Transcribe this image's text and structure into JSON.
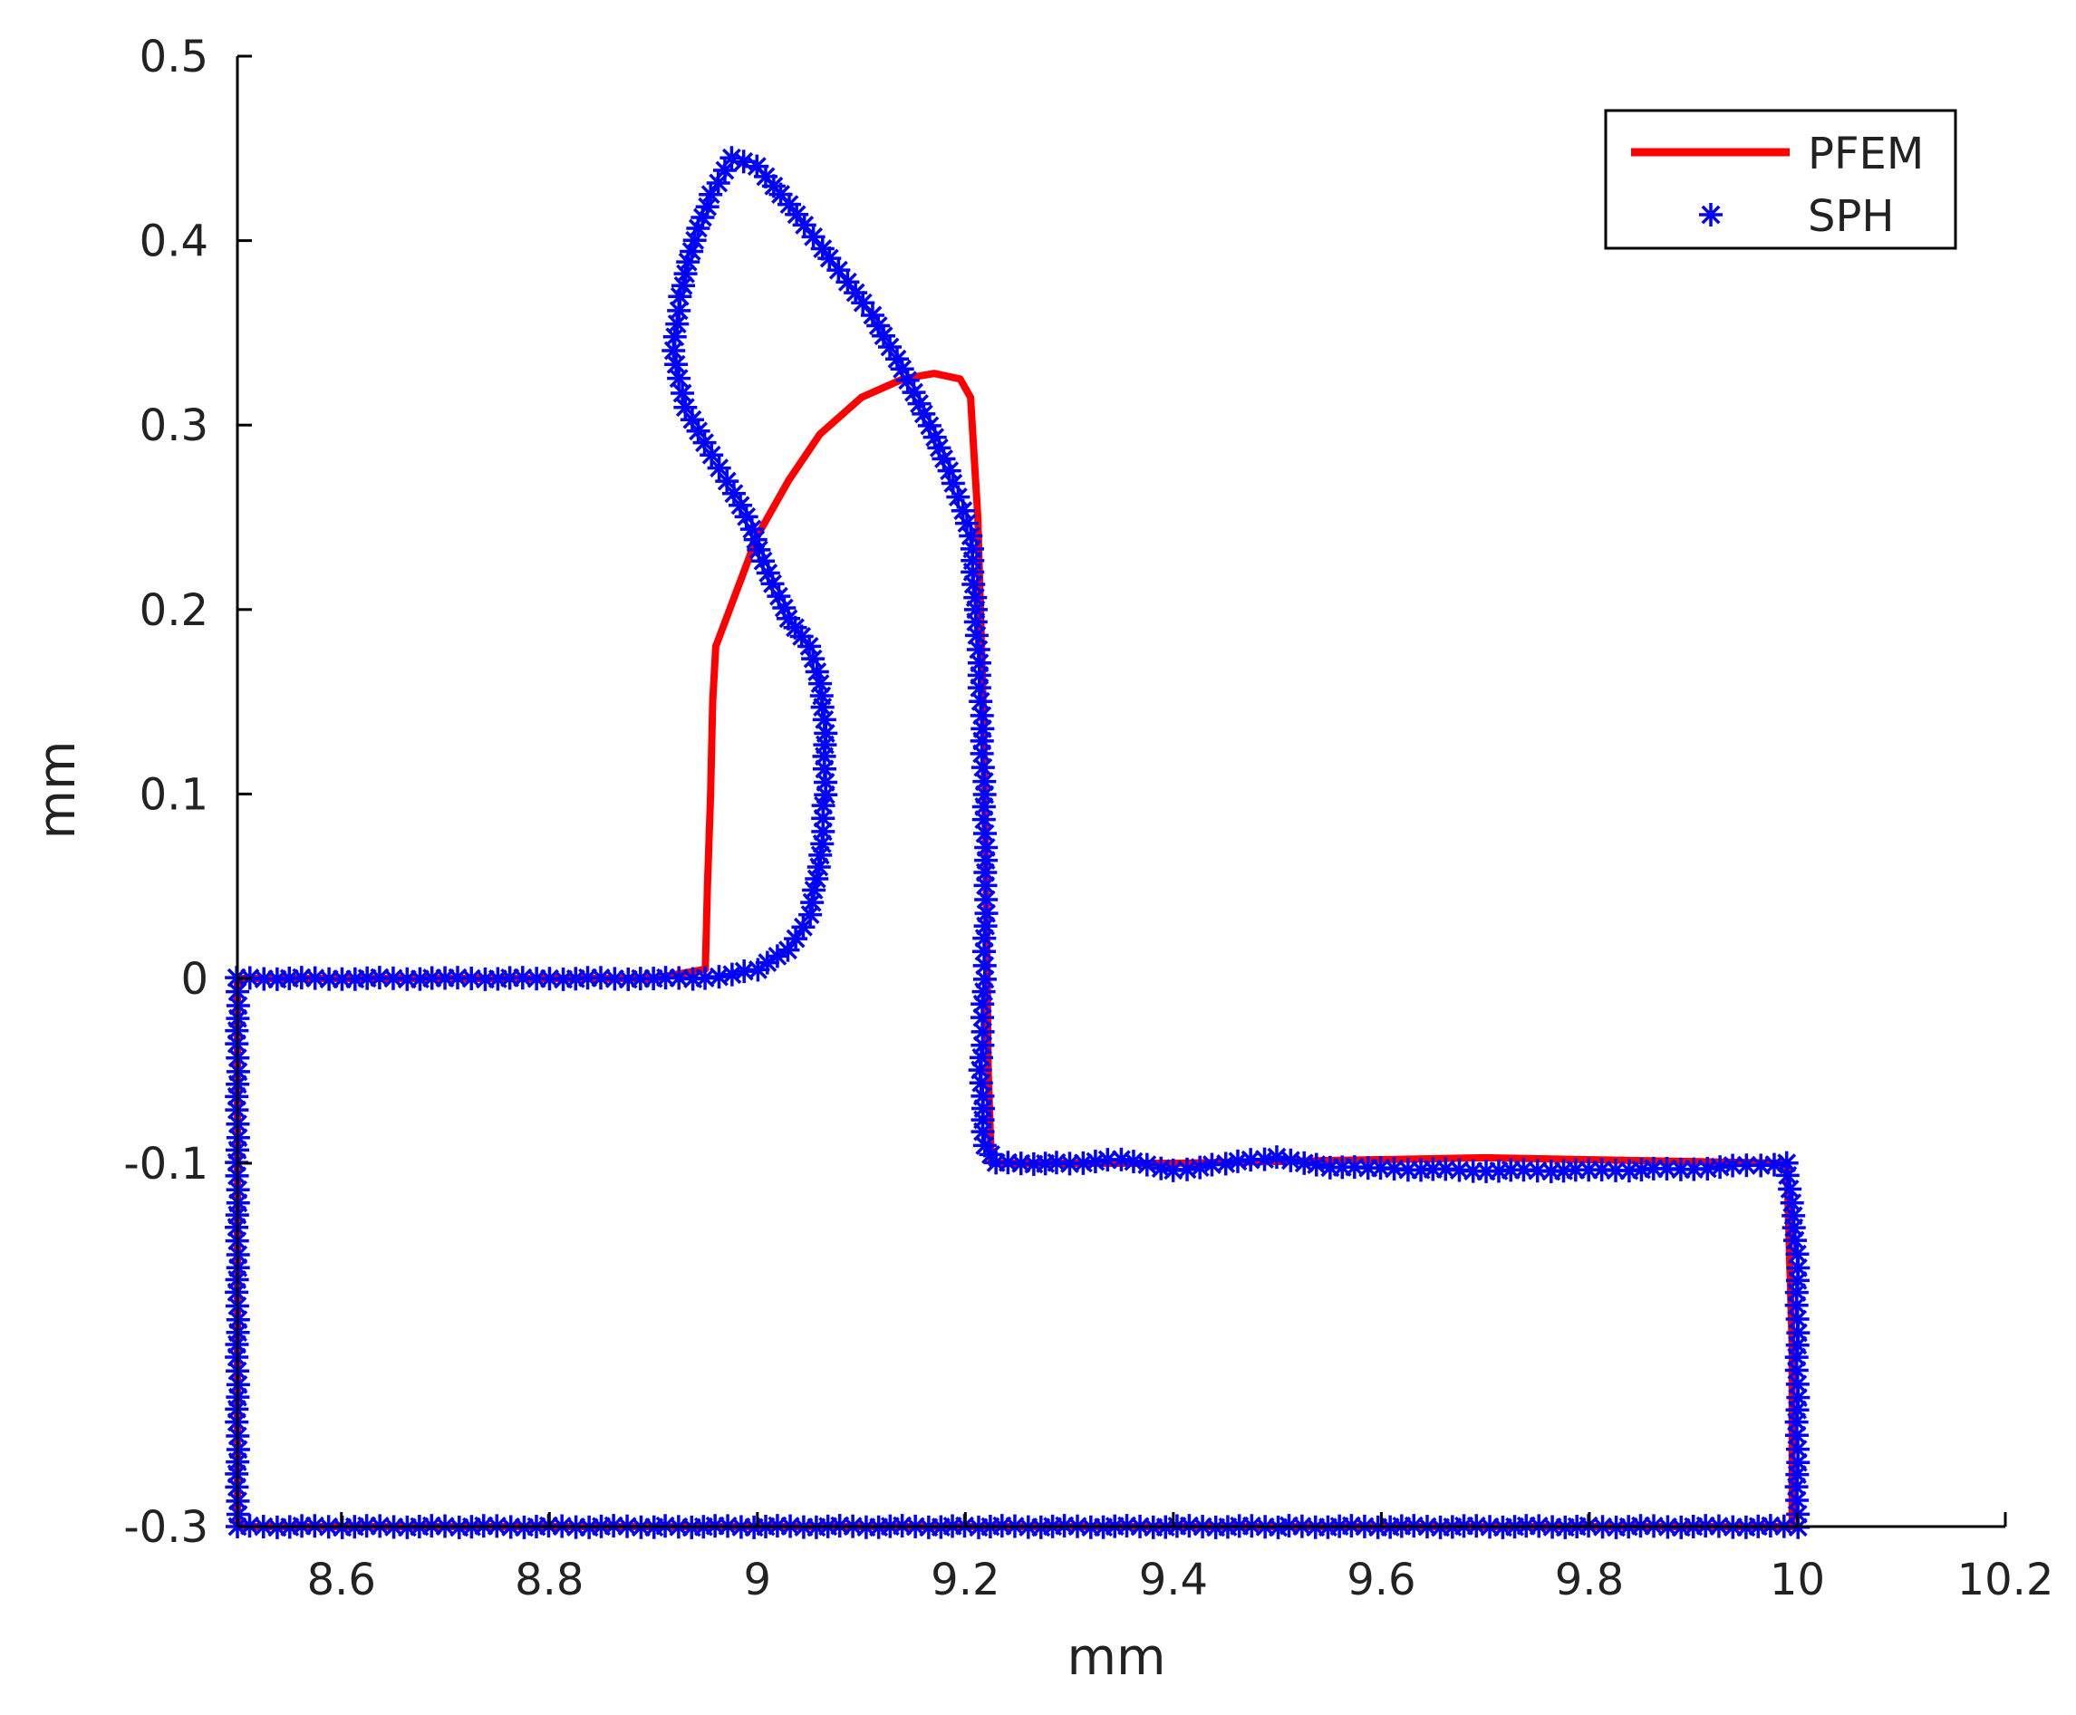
{
  "chart_data": {
    "type": "line",
    "xlabel": "mm",
    "ylabel": "mm",
    "xlim": [
      8.5,
      10.2
    ],
    "ylim": [
      -0.3,
      0.5
    ],
    "xticks": [
      8.6,
      8.8,
      9,
      9.2,
      9.4,
      9.6,
      9.8,
      10,
      10.2
    ],
    "xtick_labels": [
      "8.6",
      "8.8",
      "9",
      "9.2",
      "9.4",
      "9.6",
      "9.8",
      "10",
      "10.2"
    ],
    "yticks": [
      -0.3,
      -0.1,
      0,
      0.1,
      0.2,
      0.3,
      0.4,
      0.5
    ],
    "ytick_labels": [
      "-0.3",
      "-0.1",
      "0",
      "0.1",
      "0.2",
      "0.3",
      "0.4",
      "0.5"
    ],
    "grid": false,
    "legend_position": "top-right",
    "series": [
      {
        "name": "PFEM",
        "style": "line",
        "color": "#ff0000",
        "points": [
          [
            8.5,
            -0.3
          ],
          [
            8.5,
            0
          ],
          [
            8.7,
            0
          ],
          [
            8.9,
            0
          ],
          [
            8.95,
            0.005
          ],
          [
            8.952,
            0.05
          ],
          [
            8.955,
            0.1
          ],
          [
            8.957,
            0.15
          ],
          [
            8.96,
            0.18
          ],
          [
            8.98,
            0.21
          ],
          [
            9.0,
            0.24
          ],
          [
            9.03,
            0.27
          ],
          [
            9.06,
            0.295
          ],
          [
            9.1,
            0.315
          ],
          [
            9.14,
            0.325
          ],
          [
            9.17,
            0.328
          ],
          [
            9.195,
            0.325
          ],
          [
            9.205,
            0.315
          ],
          [
            9.212,
            0.25
          ],
          [
            9.217,
            0.15
          ],
          [
            9.22,
            0.05
          ],
          [
            9.222,
            -0.05
          ],
          [
            9.225,
            -0.1
          ],
          [
            9.4,
            -0.1
          ],
          [
            9.7,
            -0.097
          ],
          [
            9.99,
            -0.1
          ],
          [
            9.995,
            -0.2
          ],
          [
            9.995,
            -0.3
          ],
          [
            8.5,
            -0.3
          ]
        ]
      },
      {
        "name": "SPH",
        "style": "marker",
        "marker": "asterisk",
        "color": "#0000ff",
        "points": [
          [
            8.5,
            -0.3
          ],
          [
            8.5,
            -0.25
          ],
          [
            8.5,
            -0.2
          ],
          [
            8.5,
            -0.15
          ],
          [
            8.5,
            -0.1
          ],
          [
            8.5,
            -0.05
          ],
          [
            8.5,
            0
          ],
          [
            8.6,
            0
          ],
          [
            8.7,
            0
          ],
          [
            8.8,
            0
          ],
          [
            8.9,
            0
          ],
          [
            8.95,
            0
          ],
          [
            9.0,
            0.005
          ],
          [
            9.03,
            0.015
          ],
          [
            9.05,
            0.035
          ],
          [
            9.06,
            0.06
          ],
          [
            9.065,
            0.1
          ],
          [
            9.065,
            0.14
          ],
          [
            9.06,
            0.16
          ],
          [
            9.05,
            0.18
          ],
          [
            9.03,
            0.195
          ],
          [
            9.01,
            0.22
          ],
          [
            8.99,
            0.25
          ],
          [
            8.97,
            0.27
          ],
          [
            8.95,
            0.29
          ],
          [
            8.93,
            0.31
          ],
          [
            8.92,
            0.34
          ],
          [
            8.925,
            0.37
          ],
          [
            8.94,
            0.4
          ],
          [
            8.955,
            0.425
          ],
          [
            8.975,
            0.445
          ],
          [
            9.0,
            0.44
          ],
          [
            9.03,
            0.42
          ],
          [
            9.07,
            0.39
          ],
          [
            9.11,
            0.36
          ],
          [
            9.14,
            0.33
          ],
          [
            9.165,
            0.3
          ],
          [
            9.185,
            0.275
          ],
          [
            9.205,
            0.24
          ],
          [
            9.21,
            0.2
          ],
          [
            9.215,
            0.15
          ],
          [
            9.218,
            0.1
          ],
          [
            9.22,
            0.05
          ],
          [
            9.218,
            0
          ],
          [
            9.215,
            -0.05
          ],
          [
            9.218,
            -0.09
          ],
          [
            9.23,
            -0.1
          ],
          [
            9.3,
            -0.1
          ],
          [
            9.35,
            -0.098
          ],
          [
            9.4,
            -0.104
          ],
          [
            9.45,
            -0.1
          ],
          [
            9.5,
            -0.097
          ],
          [
            9.55,
            -0.102
          ],
          [
            9.6,
            -0.103
          ],
          [
            9.7,
            -0.104
          ],
          [
            9.8,
            -0.104
          ],
          [
            9.9,
            -0.103
          ],
          [
            9.99,
            -0.1
          ],
          [
            10.0,
            -0.15
          ],
          [
            10.0,
            -0.2
          ],
          [
            10.0,
            -0.25
          ],
          [
            10.0,
            -0.3
          ],
          [
            9.8,
            -0.3
          ],
          [
            9.5,
            -0.3
          ],
          [
            9.2,
            -0.3
          ],
          [
            8.9,
            -0.3
          ],
          [
            8.7,
            -0.3
          ],
          [
            8.5,
            -0.3
          ]
        ]
      }
    ]
  }
}
